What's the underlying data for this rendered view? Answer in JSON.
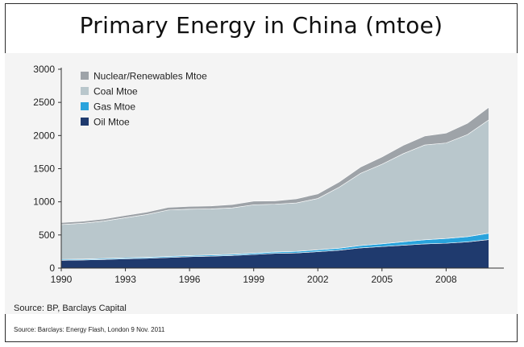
{
  "chart_data": {
    "type": "area",
    "stacked": true,
    "title": "Primary Energy in China (mtoe)",
    "xlabel": "",
    "ylabel": "",
    "x": [
      1990,
      1991,
      1992,
      1993,
      1994,
      1995,
      1996,
      1997,
      1998,
      1999,
      2000,
      2001,
      2002,
      2003,
      2004,
      2005,
      2006,
      2007,
      2008,
      2009,
      2010
    ],
    "xticks": [
      "1990",
      "1993",
      "1996",
      "1999",
      "2002",
      "2005",
      "2008"
    ],
    "yticks": [
      "0",
      "500",
      "1000",
      "1500",
      "2000",
      "2500",
      "3000"
    ],
    "xlim": [
      1990,
      2010.7
    ],
    "ylim": [
      0,
      3000
    ],
    "series": [
      {
        "name": "Oil Mtoe",
        "color": "#1f3a6e",
        "values": [
          118,
          122,
          130,
          140,
          148,
          160,
          172,
          180,
          190,
          205,
          222,
          228,
          248,
          270,
          305,
          325,
          345,
          365,
          375,
          395,
          430
        ]
      },
      {
        "name": "Gas Mtoe",
        "color": "#29a3dc",
        "values": [
          14,
          14,
          15,
          15,
          15,
          16,
          17,
          18,
          19,
          20,
          22,
          25,
          27,
          30,
          35,
          42,
          52,
          62,
          72,
          80,
          96
        ]
      },
      {
        "name": "Coal Mtoe",
        "color": "#b9c7cc",
        "values": [
          525,
          540,
          565,
          605,
          645,
          700,
          700,
          695,
          700,
          730,
          720,
          730,
          775,
          920,
          1090,
          1200,
          1330,
          1430,
          1440,
          1540,
          1710
        ]
      },
      {
        "name": "Nuclear/Renewables Mtoe",
        "color": "#9ea3a8",
        "values": [
          30,
          30,
          32,
          34,
          36,
          40,
          42,
          45,
          50,
          55,
          50,
          62,
          70,
          80,
          95,
          110,
          125,
          135,
          150,
          170,
          190
        ]
      }
    ],
    "legend": [
      "Nuclear/Renewables Mtoe",
      "Coal Mtoe",
      "Gas Mtoe",
      "Oil Mtoe"
    ],
    "legend_position": "top-left"
  },
  "source_line": "Source: BP, Barclays Capital",
  "footer_source": "Source: Barclays: Energy Flash, London 9 Nov. 2011"
}
